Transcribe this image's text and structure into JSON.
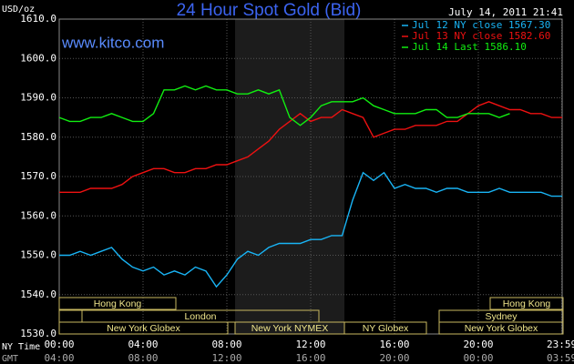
{
  "chart_data": {
    "type": "line",
    "title": "24 Hour Spot Gold (Bid)",
    "source": "www.kitco.com",
    "timestamp": "July 14, 2011 21:41",
    "y_label": "USD/oz",
    "x_row_labels": [
      "NY Time",
      "GMT"
    ],
    "x": [
      0,
      0.5,
      1,
      1.5,
      2,
      2.5,
      3,
      3.5,
      4,
      4.5,
      5,
      5.5,
      6,
      6.5,
      7,
      7.5,
      8,
      8.5,
      9,
      9.5,
      10,
      10.5,
      11,
      11.5,
      12,
      12.5,
      13,
      13.5,
      14,
      14.5,
      15,
      15.5,
      16,
      16.5,
      17,
      17.5,
      18,
      18.5,
      19,
      19.5,
      20,
      20.5,
      21,
      21.5,
      22,
      22.5,
      23,
      23.5,
      24
    ],
    "series": [
      {
        "name": "Jul 12 NY close 1567.30",
        "color": "#19b4f5",
        "values": [
          1550,
          1550,
          1551,
          1550,
          1551,
          1552,
          1549,
          1547,
          1546,
          1547,
          1545,
          1546,
          1545,
          1547,
          1546,
          1542,
          1545,
          1549,
          1551,
          1550,
          1552,
          1553,
          1553,
          1553,
          1554,
          1554,
          1555,
          1555,
          1564,
          1571,
          1569,
          1571,
          1567,
          1568,
          1567,
          1567,
          1566,
          1567,
          1567,
          1566,
          1566,
          1566,
          1567,
          1566,
          1566,
          1566,
          1566,
          1565,
          1565
        ]
      },
      {
        "name": "Jul 13 NY close 1582.60",
        "color": "#ee1111",
        "values": [
          1566,
          1566,
          1566,
          1567,
          1567,
          1567,
          1568,
          1570,
          1571,
          1572,
          1572,
          1571,
          1571,
          1572,
          1572,
          1573,
          1573,
          1574,
          1575,
          1577,
          1579,
          1582,
          1584,
          1586,
          1584,
          1585,
          1585,
          1587,
          1586,
          1585,
          1580,
          1581,
          1582,
          1582,
          1583,
          1583,
          1583,
          1584,
          1584,
          1586,
          1588,
          1589,
          1588,
          1587,
          1587,
          1586,
          1586,
          1585,
          1585
        ]
      },
      {
        "name": "Jul 14 Last 1586.10",
        "color": "#11ee11",
        "values": [
          1585,
          1584,
          1584,
          1585,
          1585,
          1586,
          1585,
          1584,
          1584,
          1586,
          1592,
          1592,
          1593,
          1592,
          1593,
          1592,
          1592,
          1591,
          1591,
          1592,
          1591,
          1592,
          1585,
          1583,
          1585,
          1588,
          1589,
          1589,
          1589,
          1590,
          1588,
          1587,
          1586,
          1586,
          1586,
          1587,
          1587,
          1585,
          1585,
          1586,
          1586,
          1586,
          1585,
          1586,
          null,
          null,
          null,
          null,
          null
        ]
      }
    ],
    "xlim": [
      0,
      24
    ],
    "xticks": [
      {
        "value": 0,
        "label": "00:00"
      },
      {
        "value": 4,
        "label": "04:00"
      },
      {
        "value": 8,
        "label": "08:00"
      },
      {
        "value": 12,
        "label": "12:00"
      },
      {
        "value": 16,
        "label": "16:00"
      },
      {
        "value": 20,
        "label": "20:00"
      },
      {
        "value": 23.983,
        "label": "23:59"
      }
    ],
    "x2_labels": [
      "04:00",
      "08:00",
      "12:00",
      "16:00",
      "20:00",
      "00:00",
      "03:59"
    ],
    "ylim": [
      1530,
      1610
    ],
    "yticks": [
      {
        "value": 1530,
        "label": "1530.0"
      },
      {
        "value": 1540,
        "label": "1540.0"
      },
      {
        "value": 1550,
        "label": "1550.0"
      },
      {
        "value": 1560,
        "label": "1560.0"
      },
      {
        "value": 1570,
        "label": "1570.0"
      },
      {
        "value": 1580,
        "label": "1580.0"
      },
      {
        "value": 1590,
        "label": "1590.0"
      },
      {
        "value": 1600,
        "label": "1600.0"
      },
      {
        "value": 1610,
        "label": "1610.0"
      }
    ],
    "grid": true,
    "sessions": [
      "Hong Kong",
      "London",
      "New York Globex",
      "New York NYMEX",
      "NY Globex",
      "Hong Kong",
      "Sydney",
      "New York Globex"
    ]
  }
}
